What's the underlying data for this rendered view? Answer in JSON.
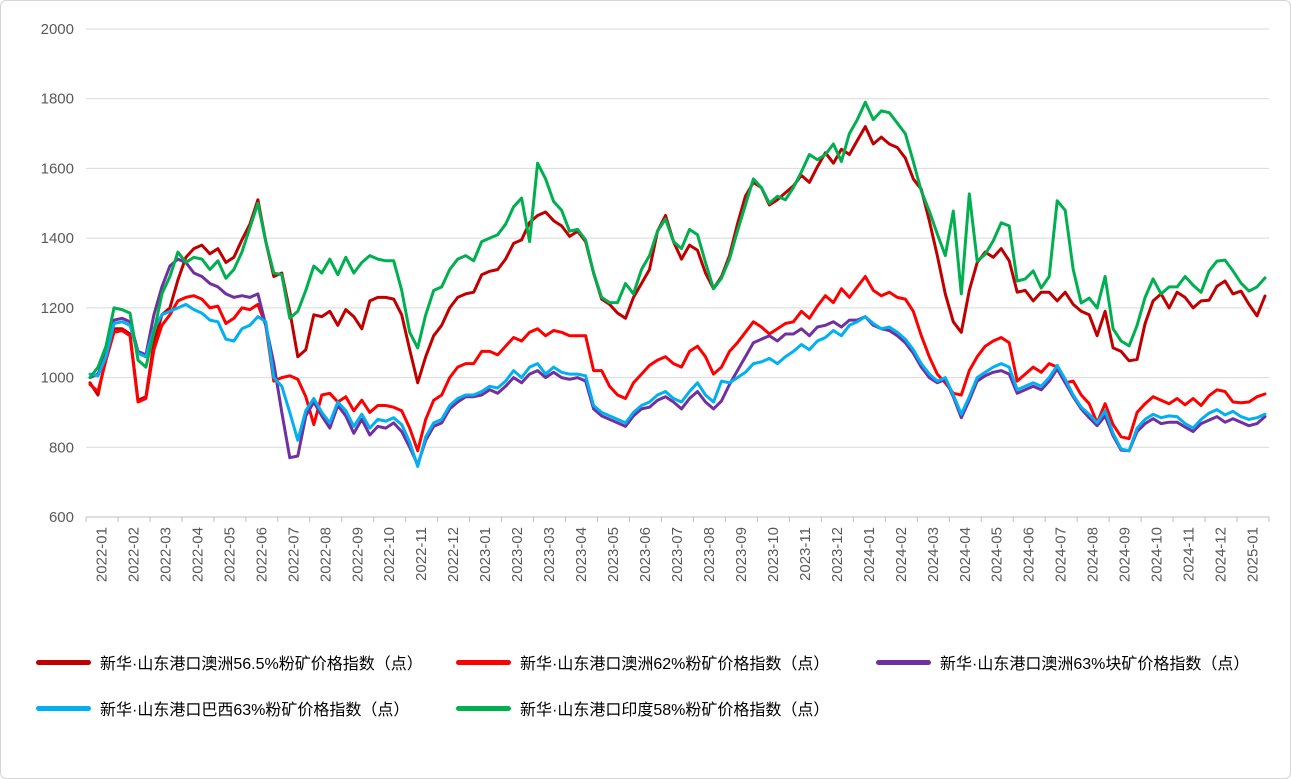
{
  "chart_data": {
    "type": "line",
    "title": "",
    "xlabel": "",
    "ylabel": "",
    "grid": true,
    "legend_position": "bottom",
    "grid_color": "#D9D9D9",
    "axis_color": "#BFBFBF",
    "label_color": "#595959",
    "y_axis": {
      "min": 600,
      "max": 2000,
      "step": 200,
      "ticks": [
        600,
        800,
        1000,
        1200,
        1400,
        1600,
        1800,
        2000
      ]
    },
    "x_labels": [
      "2022-01",
      "2022-02",
      "2022-03",
      "2022-04",
      "2022-05",
      "2022-06",
      "2022-07",
      "2022-08",
      "2022-09",
      "2022-10",
      "2022-11",
      "2022-12",
      "2023-01",
      "2023-02",
      "2023-03",
      "2023-04",
      "2023-05",
      "2023-06",
      "2023-07",
      "2023-08",
      "2023-09",
      "2023-10",
      "2023-11",
      "2023-12",
      "2024-01",
      "2024-02",
      "2024-03",
      "2024-04",
      "2024-05",
      "2024-06",
      "2024-07",
      "2024-08",
      "2024-09",
      "2024-10",
      "2024-11",
      "2024-12",
      "2025-01"
    ],
    "points_per_month": 4,
    "series": [
      {
        "name": "新华·山东港口澳洲56.5%粉矿价格指数（点）",
        "color": "#C00000",
        "values": [
          985,
          950,
          1060,
          1140,
          1140,
          1125,
          935,
          945,
          1100,
          1180,
          1200,
          1280,
          1345,
          1370,
          1380,
          1355,
          1370,
          1330,
          1345,
          1395,
          1440,
          1510,
          1390,
          1290,
          1300,
          1190,
          1060,
          1080,
          1180,
          1175,
          1190,
          1150,
          1195,
          1175,
          1140,
          1220,
          1230,
          1230,
          1225,
          1180,
          1080,
          985,
          1060,
          1120,
          1150,
          1200,
          1230,
          1240,
          1245,
          1295,
          1305,
          1310,
          1340,
          1385,
          1395,
          1445,
          1465,
          1475,
          1450,
          1435,
          1405,
          1420,
          1390,
          1300,
          1225,
          1210,
          1185,
          1170,
          1230,
          1270,
          1310,
          1420,
          1465,
          1390,
          1340,
          1380,
          1365,
          1300,
          1255,
          1290,
          1350,
          1440,
          1520,
          1560,
          1545,
          1495,
          1510,
          1530,
          1550,
          1580,
          1560,
          1605,
          1645,
          1615,
          1655,
          1640,
          1680,
          1720,
          1670,
          1690,
          1670,
          1660,
          1630,
          1570,
          1540,
          1450,
          1350,
          1240,
          1160,
          1130,
          1250,
          1330,
          1360,
          1345,
          1370,
          1335,
          1245,
          1250,
          1220,
          1245,
          1245,
          1220,
          1245,
          1210,
          1190,
          1180,
          1120,
          1190,
          1085,
          1075,
          1048,
          1052,
          1155,
          1220,
          1240,
          1200,
          1245,
          1230,
          1200,
          1220,
          1222,
          1262,
          1277,
          1240,
          1248,
          1210,
          1177,
          1234
        ]
      },
      {
        "name": "新华·山东港口澳洲62%粉矿价格指数（点）",
        "color": "#FF0000",
        "values": [
          980,
          960,
          1050,
          1130,
          1135,
          1120,
          930,
          940,
          1080,
          1150,
          1180,
          1220,
          1230,
          1235,
          1225,
          1200,
          1205,
          1155,
          1170,
          1200,
          1195,
          1210,
          1150,
          990,
          1000,
          1005,
          995,
          945,
          865,
          950,
          955,
          930,
          945,
          905,
          935,
          900,
          920,
          920,
          915,
          905,
          855,
          790,
          880,
          935,
          950,
          1000,
          1030,
          1040,
          1040,
          1075,
          1075,
          1065,
          1090,
          1115,
          1105,
          1130,
          1140,
          1120,
          1135,
          1130,
          1120,
          1120,
          1120,
          1020,
          1020,
          975,
          950,
          940,
          985,
          1010,
          1035,
          1050,
          1060,
          1040,
          1030,
          1075,
          1090,
          1060,
          1010,
          1030,
          1075,
          1100,
          1130,
          1160,
          1145,
          1125,
          1140,
          1155,
          1160,
          1190,
          1170,
          1205,
          1235,
          1215,
          1255,
          1230,
          1260,
          1290,
          1250,
          1235,
          1245,
          1230,
          1225,
          1190,
          1120,
          1060,
          1010,
          985,
          955,
          950,
          1020,
          1060,
          1090,
          1105,
          1115,
          1100,
          990,
          1010,
          1030,
          1015,
          1040,
          1030,
          985,
          990,
          950,
          925,
          870,
          925,
          865,
          830,
          825,
          900,
          925,
          945,
          935,
          925,
          940,
          922,
          940,
          920,
          948,
          965,
          960,
          930,
          928,
          930,
          945,
          953
        ]
      },
      {
        "name": "新华·山东港口澳洲63%块矿价格指数（点）",
        "color": "#7030A0",
        "values": [
          1000,
          1010,
          1070,
          1165,
          1170,
          1160,
          1075,
          1065,
          1180,
          1260,
          1320,
          1340,
          1330,
          1300,
          1290,
          1270,
          1260,
          1240,
          1230,
          1235,
          1230,
          1240,
          1150,
          1040,
          900,
          770,
          775,
          890,
          930,
          890,
          855,
          920,
          890,
          840,
          880,
          835,
          860,
          855,
          870,
          845,
          800,
          750,
          820,
          860,
          870,
          910,
          930,
          945,
          945,
          950,
          965,
          955,
          975,
          1000,
          985,
          1010,
          1020,
          1000,
          1015,
          1000,
          995,
          1000,
          990,
          910,
          890,
          880,
          870,
          860,
          890,
          910,
          915,
          935,
          945,
          930,
          910,
          940,
          960,
          930,
          910,
          933,
          980,
          1020,
          1060,
          1100,
          1110,
          1120,
          1105,
          1125,
          1125,
          1140,
          1120,
          1145,
          1150,
          1160,
          1145,
          1165,
          1165,
          1175,
          1150,
          1140,
          1135,
          1120,
          1100,
          1070,
          1030,
          1000,
          985,
          995,
          945,
          885,
          935,
          990,
          1005,
          1015,
          1020,
          1010,
          955,
          965,
          975,
          965,
          990,
          1025,
          985,
          945,
          910,
          885,
          862,
          890,
          833,
          792,
          790,
          845,
          868,
          882,
          868,
          872,
          872,
          858,
          845,
          868,
          878,
          888,
          872,
          882,
          872,
          862,
          868,
          888
        ]
      },
      {
        "name": "新华·山东港口巴西63%粉矿价格指数（点）",
        "color": "#00B0F0",
        "values": [
          1010,
          1005,
          1060,
          1155,
          1160,
          1150,
          1070,
          1060,
          1140,
          1180,
          1190,
          1200,
          1210,
          1195,
          1185,
          1165,
          1160,
          1110,
          1105,
          1140,
          1150,
          1175,
          1160,
          1000,
          975,
          900,
          820,
          905,
          940,
          900,
          870,
          930,
          905,
          860,
          895,
          855,
          880,
          875,
          885,
          865,
          815,
          745,
          830,
          870,
          880,
          920,
          940,
          950,
          950,
          960,
          975,
          970,
          990,
          1020,
          1000,
          1030,
          1040,
          1010,
          1030,
          1015,
          1010,
          1010,
          1005,
          920,
          900,
          890,
          880,
          870,
          900,
          920,
          930,
          950,
          960,
          940,
          930,
          960,
          985,
          950,
          930,
          990,
          985,
          1000,
          1015,
          1040,
          1045,
          1055,
          1040,
          1060,
          1075,
          1095,
          1080,
          1105,
          1115,
          1135,
          1120,
          1150,
          1160,
          1175,
          1155,
          1140,
          1145,
          1130,
          1110,
          1080,
          1040,
          1010,
          990,
          1000,
          950,
          895,
          945,
          1000,
          1015,
          1030,
          1040,
          1030,
          965,
          975,
          985,
          975,
          1000,
          1035,
          995,
          950,
          915,
          895,
          870,
          905,
          840,
          795,
          790,
          855,
          880,
          895,
          885,
          890,
          888,
          868,
          855,
          880,
          898,
          908,
          893,
          903,
          888,
          880,
          885,
          895
        ]
      },
      {
        "name": "新华·山东港口印度58%粉矿价格指数（点）",
        "color": "#00B050",
        "values": [
          1000,
          1030,
          1090,
          1200,
          1195,
          1185,
          1050,
          1030,
          1130,
          1240,
          1290,
          1360,
          1330,
          1345,
          1340,
          1310,
          1335,
          1285,
          1310,
          1360,
          1430,
          1500,
          1390,
          1300,
          1295,
          1170,
          1190,
          1250,
          1320,
          1300,
          1340,
          1295,
          1345,
          1300,
          1330,
          1350,
          1340,
          1335,
          1335,
          1250,
          1130,
          1085,
          1180,
          1250,
          1260,
          1310,
          1340,
          1350,
          1335,
          1390,
          1400,
          1410,
          1440,
          1490,
          1515,
          1390,
          1615,
          1570,
          1505,
          1480,
          1420,
          1425,
          1395,
          1300,
          1230,
          1215,
          1215,
          1270,
          1240,
          1310,
          1350,
          1420,
          1455,
          1390,
          1370,
          1425,
          1410,
          1330,
          1255,
          1285,
          1340,
          1420,
          1495,
          1570,
          1545,
          1500,
          1520,
          1510,
          1545,
          1590,
          1640,
          1625,
          1640,
          1670,
          1620,
          1700,
          1740,
          1790,
          1740,
          1765,
          1760,
          1730,
          1700,
          1620,
          1535,
          1478,
          1412,
          1350,
          1478,
          1240,
          1527,
          1334,
          1354,
          1392,
          1444,
          1435,
          1277,
          1283,
          1306,
          1257,
          1290,
          1507,
          1480,
          1310,
          1214,
          1228,
          1200,
          1290,
          1140,
          1105,
          1091,
          1150,
          1230,
          1283,
          1240,
          1260,
          1260,
          1290,
          1265,
          1245,
          1306,
          1334,
          1337,
          1306,
          1271,
          1248,
          1260,
          1286
        ]
      }
    ]
  }
}
